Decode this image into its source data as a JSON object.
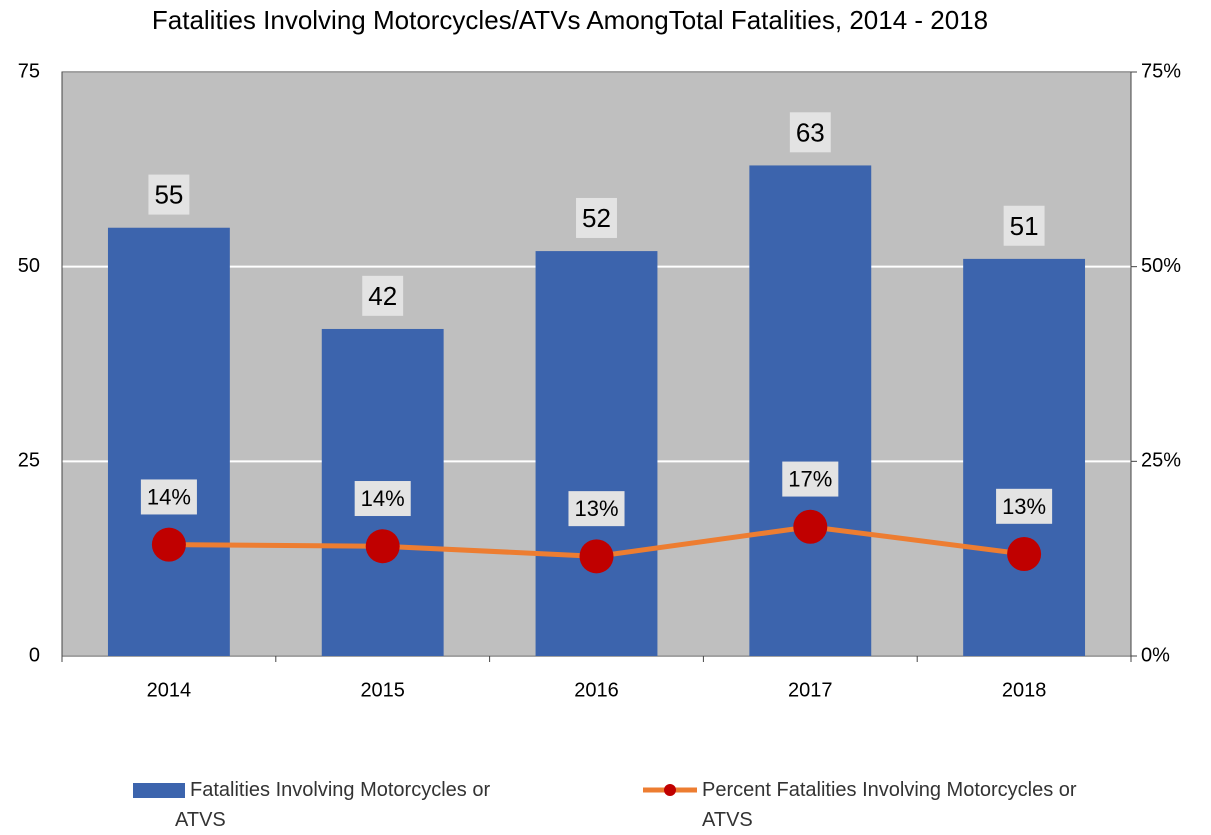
{
  "chart_data": {
    "type": "bar",
    "title": "Fatalities Involving Motorcycles/ATVs AmongTotal Fatalities, 2014 - 2018",
    "categories": [
      "2014",
      "2015",
      "2016",
      "2017",
      "2018"
    ],
    "series": [
      {
        "name": "Fatalities Involving Motorcycles or ATVS",
        "type": "bar",
        "color": "#3c64ad",
        "values": [
          55,
          42,
          52,
          63,
          51
        ]
      },
      {
        "name": "Percent Fatalities Involving Motorcycles or ATVS",
        "type": "line",
        "axis": "y2",
        "color": "#ed7d31",
        "marker_color": "#c00000",
        "values": [
          14.3,
          14.1,
          12.8,
          16.6,
          13.1
        ],
        "value_labels": [
          "14%",
          "14%",
          "13%",
          "17%",
          "13%"
        ]
      }
    ],
    "ylim": [
      0,
      75
    ],
    "yticks": [
      0,
      25,
      50,
      75
    ],
    "y2lim": [
      0,
      75
    ],
    "y2ticks": [
      {
        "value": 0,
        "label": "0%"
      },
      {
        "value": 25,
        "label": "25%"
      },
      {
        "value": 50,
        "label": "50%"
      },
      {
        "value": 75,
        "label": "75%"
      }
    ],
    "grid": true,
    "legend": "bottom"
  }
}
